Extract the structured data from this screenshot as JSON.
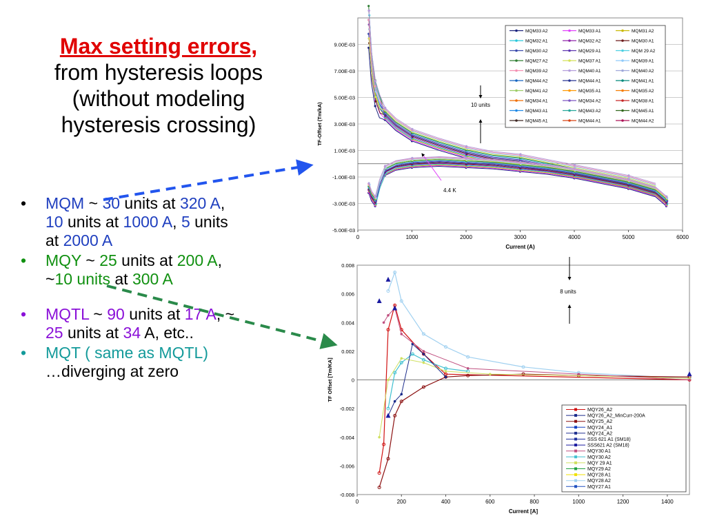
{
  "slide": {
    "title": "Max setting errors,",
    "subtitle_lines": [
      "from hysteresis loops",
      "(without modeling",
      "hysteresis crossing)"
    ]
  },
  "bullets": {
    "mqm": {
      "a": "MQM",
      "b": " ~ ",
      "c": "30",
      "d": " units at ",
      "e": "320 A",
      "f": ",",
      "g": "10",
      "h": " units at ",
      "i": "1000 A",
      "j": ",  ",
      "k": "5",
      "l": " units",
      "m": "at ",
      "n": "2000 A"
    },
    "mqy": {
      "a": "MQY",
      "b": " ~ ",
      "c": "25",
      "d": " units at ",
      "e": "200 A",
      "f": ",",
      "g": "~",
      "h": "10 units",
      "i": " at ",
      "j": "300 A"
    },
    "mqtl": {
      "a": "MQTL",
      "b": " ~ ",
      "c": "90",
      "d": " units at ",
      "e": "17 A",
      "f": ", ~",
      "g": "25",
      "h": " units at ",
      "i": "34",
      "j": " A, etc.."
    },
    "mqt": {
      "a": "MQT ( same as MQTL)",
      "b": "…diverging at zero"
    },
    "dot": "•"
  },
  "colors": {
    "title": "#e00000",
    "blue": "#1f3fbf",
    "green": "#109010",
    "purple": "#8a10d8",
    "teal": "#139a9a",
    "arrow_blue": "#2255ee",
    "arrow_green": "#2a8a4a"
  },
  "chart_data": [
    {
      "type": "line",
      "title": "",
      "xlabel": "Current (A)",
      "ylabel": "TF-Offset (Tm/kA)",
      "xlim": [
        0,
        6000
      ],
      "ylim": [
        -0.005,
        0.011
      ],
      "xticks": [
        "0",
        "1000",
        "2000",
        "3000",
        "4000",
        "5000",
        "6000"
      ],
      "yticks": [
        "-5.00E-03",
        "-3.00E-03",
        "-1.00E-03",
        "1.00E-03",
        "3.00E-03",
        "5.00E-03",
        "7.00E-03",
        "9.00E-03"
      ],
      "ytick_values": [
        -0.005,
        -0.003,
        -0.001,
        0.001,
        0.003,
        0.005,
        0.007,
        0.009
      ],
      "annotations": [
        "10 units",
        "4.4 K"
      ],
      "legend_position": "top-right",
      "legend": [
        "MQM33 A2",
        "MQM33 A1",
        "MQM31 A2",
        "MQM32 A1",
        "MQM32 A2",
        "MQM30 A1",
        "MQM30 A2",
        "MQM29 A1",
        "MQM 29 A2",
        "MQM27 A2",
        "MQM37 A1",
        "MQM39 A1",
        "MQM39 A2",
        "MQM40 A1",
        "MQM40 A2",
        "MQM44 A2",
        "MQM44 A1",
        "MQM41 A1",
        "MQM41 A2",
        "MQM35 A1",
        "MQM35 A2",
        "MQM34 A1",
        "MQM34 A2",
        "MQM38 A1",
        "MQM43 A1",
        "MQM43 A2",
        "MQM45 A1",
        "MQM45 A1",
        "MQM44 A1",
        "MQM44 A2"
      ],
      "legend_colors": [
        "#1a237e",
        "#e040fb",
        "#c9b800",
        "#26c6da",
        "#8e24aa",
        "#6d1b1b",
        "#3949ab",
        "#5e35b1",
        "#4dd0e1",
        "#2e7d32",
        "#d4e157",
        "#90caf9",
        "#f48fb1",
        "#b39ddb",
        "#9fa8da",
        "#1565c0",
        "#283593",
        "#00897b",
        "#9ccc65",
        "#ff9800",
        "#f57c00",
        "#ef6c00",
        "#7e57c2",
        "#c62828",
        "#1e88e5",
        "#26a69a",
        "#33691e",
        "#3e2723",
        "#d84315",
        "#ad1457"
      ],
      "descending_branch": {
        "x": [
          200,
          250,
          320,
          400,
          500,
          700,
          1000,
          1500,
          2000,
          2500,
          3000,
          3500,
          4000,
          4500,
          5000,
          5500
        ],
        "y": [
          0.0105,
          0.0075,
          0.0055,
          0.0045,
          0.0038,
          0.003,
          0.0022,
          0.0015,
          0.0009,
          0.0005,
          0.0003,
          -0.0001,
          -0.0005,
          -0.0009,
          -0.0013,
          -0.0019
        ]
      },
      "ascending_branch": {
        "x": [
          200,
          250,
          320,
          400,
          500,
          700,
          1000,
          1500,
          2000,
          2500,
          3000,
          3500,
          4000,
          4500,
          5000,
          5500,
          5700
        ],
        "y": [
          -0.0018,
          -0.0024,
          -0.0028,
          -0.0015,
          -0.0005,
          -0.0001,
          0.0001,
          0.0002,
          0.0001,
          0.0,
          -0.0002,
          -0.0004,
          -0.0007,
          -0.0011,
          -0.0015,
          -0.0021,
          -0.0028
        ]
      }
    },
    {
      "type": "line",
      "title": "",
      "xlabel": "Current [A]",
      "ylabel": "TF Offset [Tm/KA]",
      "xlim": [
        0,
        1500
      ],
      "ylim": [
        -0.008,
        0.008
      ],
      "xticks": [
        "0",
        "200",
        "400",
        "600",
        "800",
        "1000",
        "1200",
        "1400"
      ],
      "yticks": [
        "-0.008",
        "-0.006",
        "-0.004",
        "-0.002",
        "0",
        "0.002",
        "0.004",
        "0.006",
        "0.008"
      ],
      "ytick_values": [
        -0.008,
        -0.006,
        -0.004,
        -0.002,
        0,
        0.002,
        0.004,
        0.006,
        0.008
      ],
      "annotations": [
        "8 units"
      ],
      "legend_position": "bottom-right",
      "legend": [
        "MQY26_A2",
        "MQY26_A2_MinCurr-200A",
        "MQY25_A2",
        "MQY24_A1",
        "MQY24_A2",
        "SSS 621 A1 (SM18)",
        "SSS621 A2 (SM18)",
        "MQY30 A1",
        "MQY30 A2",
        "MQY 29 A1",
        "MQY29 A2",
        "MQY28 A1",
        "MQY28 A2",
        "MQY27 A1"
      ],
      "legend_colors": [
        "#d01010",
        "#1a2a8a",
        "#8b1010",
        "#1040c0",
        "#203090",
        "#2030a0",
        "#1a1aa0",
        "#c05080",
        "#40c0d0",
        "#d0e060",
        "#20a040",
        "#f0e000",
        "#9fd0f0",
        "#2050c0"
      ],
      "series": [
        {
          "name": "MQY26_A2",
          "x": [
            100,
            120,
            140,
            170,
            200,
            300,
            400,
            1500
          ],
          "y": [
            -0.0065,
            -0.0045,
            0.0035,
            0.0052,
            0.0035,
            0.0018,
            0.0004,
            0.0
          ]
        },
        {
          "name": "MQY28 A2",
          "x": [
            140,
            170,
            200,
            300,
            400,
            500,
            750,
            1000,
            1500
          ],
          "y": [
            0.0062,
            0.0075,
            0.0055,
            0.0032,
            0.0023,
            0.0016,
            0.0009,
            0.0005,
            0.0001
          ]
        },
        {
          "name": "MQY25_A2",
          "x": [
            100,
            140,
            170,
            200,
            300,
            400,
            500,
            750,
            1000,
            1500
          ],
          "y": [
            -0.0075,
            -0.0055,
            -0.0025,
            -0.0015,
            -0.0005,
            0.0002,
            0.0003,
            0.0004,
            0.0003,
            0.0002
          ]
        },
        {
          "name": "MQY30 A2",
          "x": [
            140,
            170,
            200,
            250,
            300,
            400,
            500
          ],
          "y": [
            -0.002,
            0.0005,
            0.0012,
            0.0018,
            0.0014,
            0.0008,
            0.0006
          ]
        }
      ]
    }
  ]
}
